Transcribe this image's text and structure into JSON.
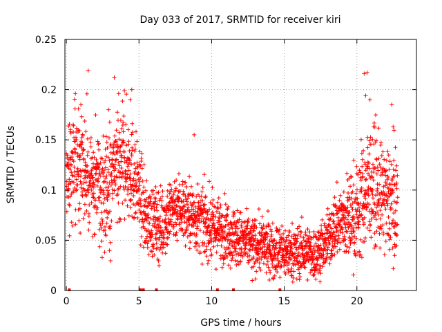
{
  "chart_data": {
    "type": "scatter",
    "title": "Day 033 of 2017, SRMTID for receiver kiri",
    "xlabel": "GPS time / hours",
    "ylabel": "SRMTID / TECUs",
    "xlim": [
      -0.1,
      24.1
    ],
    "ylim": [
      0,
      0.25
    ],
    "xticks": [
      0,
      5,
      10,
      15,
      20
    ],
    "yticks": [
      0,
      0.05,
      0.1,
      0.15,
      0.2,
      0.25
    ],
    "xtick_labels": [
      "0",
      "5",
      "10",
      "15",
      "20"
    ],
    "ytick_labels": [
      "0",
      "0.05",
      "0.1",
      "0.15",
      "0.2",
      "0.25"
    ],
    "grid": true,
    "marker": "plus",
    "color": "#ff0000",
    "series_points": "approximately 2500 cross markers, one per sample, spanning 0 to 22.8 hours",
    "trend": [
      {
        "x": 0.0,
        "y": 0.105
      },
      {
        "x": 0.5,
        "y": 0.13
      },
      {
        "x": 1.0,
        "y": 0.13
      },
      {
        "x": 1.5,
        "y": 0.115
      },
      {
        "x": 2.0,
        "y": 0.105
      },
      {
        "x": 2.5,
        "y": 0.095
      },
      {
        "x": 3.0,
        "y": 0.105
      },
      {
        "x": 3.5,
        "y": 0.125
      },
      {
        "x": 4.0,
        "y": 0.13
      },
      {
        "x": 4.5,
        "y": 0.12
      },
      {
        "x": 5.0,
        "y": 0.1
      },
      {
        "x": 5.5,
        "y": 0.07
      },
      {
        "x": 6.0,
        "y": 0.068
      },
      {
        "x": 6.5,
        "y": 0.065
      },
      {
        "x": 7.0,
        "y": 0.075
      },
      {
        "x": 7.5,
        "y": 0.085
      },
      {
        "x": 8.0,
        "y": 0.082
      },
      {
        "x": 8.5,
        "y": 0.075
      },
      {
        "x": 9.0,
        "y": 0.072
      },
      {
        "x": 9.5,
        "y": 0.068
      },
      {
        "x": 10.0,
        "y": 0.062
      },
      {
        "x": 10.5,
        "y": 0.06
      },
      {
        "x": 11.0,
        "y": 0.06
      },
      {
        "x": 11.5,
        "y": 0.055
      },
      {
        "x": 12.0,
        "y": 0.05
      },
      {
        "x": 12.5,
        "y": 0.048
      },
      {
        "x": 13.0,
        "y": 0.045
      },
      {
        "x": 13.5,
        "y": 0.045
      },
      {
        "x": 14.0,
        "y": 0.042
      },
      {
        "x": 14.5,
        "y": 0.04
      },
      {
        "x": 15.0,
        "y": 0.038
      },
      {
        "x": 15.5,
        "y": 0.038
      },
      {
        "x": 16.0,
        "y": 0.038
      },
      {
        "x": 16.5,
        "y": 0.038
      },
      {
        "x": 17.0,
        "y": 0.036
      },
      {
        "x": 17.5,
        "y": 0.04
      },
      {
        "x": 18.0,
        "y": 0.05
      },
      {
        "x": 18.5,
        "y": 0.065
      },
      {
        "x": 19.0,
        "y": 0.07
      },
      {
        "x": 19.5,
        "y": 0.072
      },
      {
        "x": 20.0,
        "y": 0.075
      },
      {
        "x": 20.5,
        "y": 0.095
      },
      {
        "x": 21.0,
        "y": 0.11
      },
      {
        "x": 21.5,
        "y": 0.095
      },
      {
        "x": 22.0,
        "y": 0.09
      },
      {
        "x": 22.5,
        "y": 0.09
      },
      {
        "x": 22.8,
        "y": 0.085
      }
    ],
    "spread": [
      {
        "x": 0.0,
        "s": 0.035
      },
      {
        "x": 4.0,
        "s": 0.035
      },
      {
        "x": 5.5,
        "s": 0.022
      },
      {
        "x": 10.0,
        "s": 0.02
      },
      {
        "x": 13.0,
        "s": 0.016
      },
      {
        "x": 18.0,
        "s": 0.016
      },
      {
        "x": 20.5,
        "s": 0.035
      },
      {
        "x": 22.8,
        "s": 0.03
      }
    ],
    "notable_points": [
      {
        "x": 1.5,
        "y": 0.219
      },
      {
        "x": 3.3,
        "y": 0.212
      },
      {
        "x": 3.6,
        "y": 0.196
      },
      {
        "x": 4.0,
        "y": 0.199
      },
      {
        "x": 4.5,
        "y": 0.2
      },
      {
        "x": 4.4,
        "y": 0.19
      },
      {
        "x": 0.6,
        "y": 0.181
      },
      {
        "x": 1.0,
        "y": 0.185
      },
      {
        "x": 2.9,
        "y": 0.18
      },
      {
        "x": 8.8,
        "y": 0.155
      },
      {
        "x": 12.8,
        "y": 0.01
      },
      {
        "x": 14.7,
        "y": 0.013
      },
      {
        "x": 20.5,
        "y": 0.216
      },
      {
        "x": 20.7,
        "y": 0.217
      },
      {
        "x": 20.6,
        "y": 0.194
      },
      {
        "x": 20.9,
        "y": 0.19
      },
      {
        "x": 22.4,
        "y": 0.185
      },
      {
        "x": 22.5,
        "y": 0.163
      },
      {
        "x": 22.6,
        "y": 0.035
      },
      {
        "x": 17.5,
        "y": 0.025
      }
    ],
    "zero_markers_x": [
      0.2,
      5.1,
      5.3,
      6.2,
      10.4,
      11.5,
      14.7
    ]
  }
}
